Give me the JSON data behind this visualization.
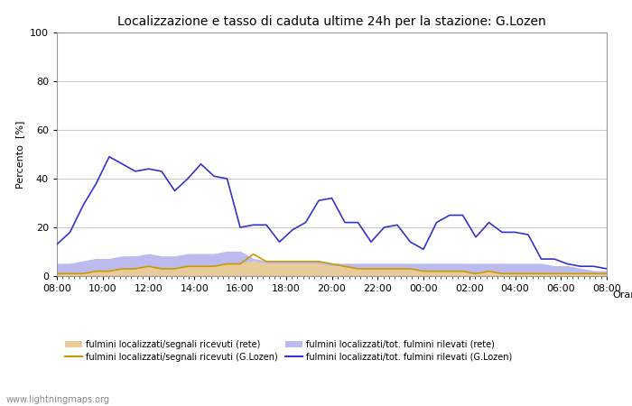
{
  "title": "Localizzazione e tasso di caduta ultime 24h per la stazione: G.Lozen",
  "xlabel": "Orario",
  "ylabel": "Percento  [%]",
  "ylim": [
    0,
    100
  ],
  "yticks": [
    0,
    20,
    40,
    60,
    80,
    100
  ],
  "background_color": "#ffffff",
  "plot_bg_color": "#ffffff",
  "grid_color": "#cccccc",
  "watermark": "www.lightningmaps.org",
  "x_labels": [
    "08:00",
    "10:00",
    "12:00",
    "14:00",
    "16:00",
    "18:00",
    "20:00",
    "22:00",
    "00:00",
    "02:00",
    "04:00",
    "06:00",
    "08:00"
  ],
  "time_indices": [
    0,
    2,
    4,
    6,
    8,
    10,
    12,
    14,
    16,
    18,
    20,
    22,
    24
  ],
  "blue_line": [
    13,
    18,
    29,
    38,
    49,
    46,
    43,
    44,
    43,
    35,
    40,
    46,
    41,
    40,
    20,
    21,
    21,
    14,
    19,
    22,
    31,
    32,
    22,
    22,
    14,
    20,
    21,
    14,
    11,
    22,
    25,
    25,
    16,
    22,
    18,
    18,
    17,
    7,
    7,
    5,
    4,
    4,
    3
  ],
  "orange_line": [
    1,
    1,
    1,
    2,
    2,
    3,
    3,
    4,
    3,
    3,
    4,
    4,
    4,
    5,
    5,
    9,
    6,
    6,
    6,
    6,
    6,
    5,
    4,
    3,
    3,
    3,
    3,
    3,
    2,
    2,
    2,
    2,
    1,
    2,
    1,
    1,
    1,
    1,
    1,
    1,
    1,
    1,
    1
  ],
  "fill_blue": [
    5,
    5,
    6,
    7,
    7,
    8,
    8,
    9,
    8,
    8,
    9,
    9,
    9,
    10,
    10,
    7,
    6,
    6,
    6,
    6,
    6,
    5,
    5,
    5,
    5,
    5,
    5,
    5,
    5,
    5,
    5,
    5,
    5,
    5,
    5,
    5,
    5,
    5,
    4,
    4,
    3,
    2,
    2
  ],
  "fill_orange": [
    1,
    1,
    1,
    2,
    2,
    3,
    3,
    4,
    3,
    3,
    4,
    4,
    4,
    5,
    5,
    6,
    5,
    5,
    5,
    5,
    5,
    4,
    4,
    3,
    3,
    3,
    3,
    3,
    2,
    2,
    2,
    2,
    1,
    2,
    1,
    1,
    1,
    1,
    1,
    1,
    1,
    1,
    1
  ],
  "n_points": 43,
  "color_blue_line": "#3333cc",
  "color_orange_line": "#cc9900",
  "color_fill_blue": "#bbbbee",
  "color_fill_orange": "#e8cc99",
  "legend_fill_orange_label": "fulmini localizzati/segnali ricevuti (rete)",
  "legend_orange_line_label": "fulmini localizzati/segnali ricevuti (G.Lozen)",
  "legend_fill_blue_label": "fulmini localizzati/tot. fulmini rilevati (rete)",
  "legend_blue_line_label": "fulmini localizzati/tot. fulmini rilevati (G.Lozen)",
  "title_fontsize": 10,
  "axis_fontsize": 8,
  "tick_fontsize": 8,
  "legend_fontsize": 7,
  "minor_ticks_count": 97
}
